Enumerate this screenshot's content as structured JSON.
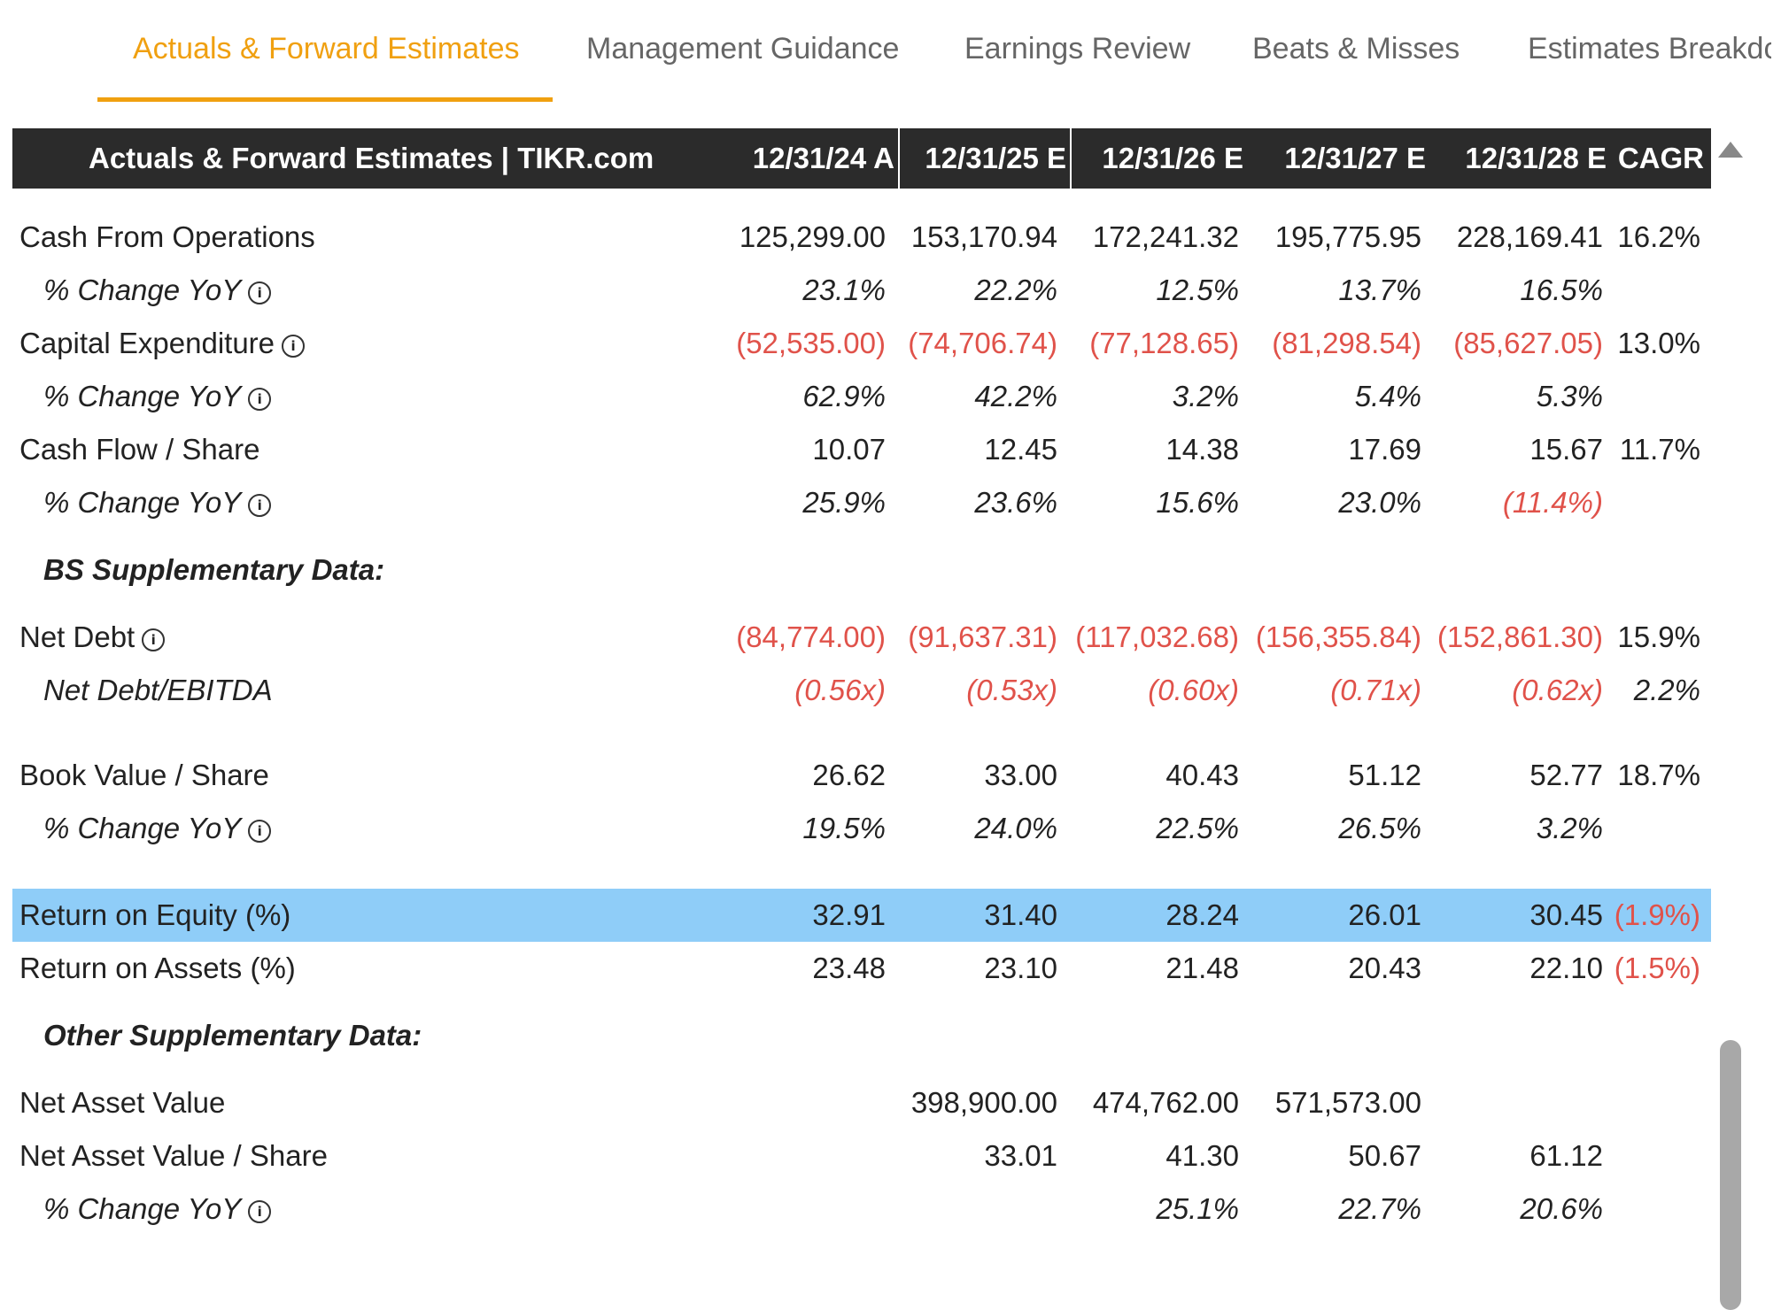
{
  "tabs": [
    {
      "label": "Actuals & Forward Estimates",
      "active": true
    },
    {
      "label": "Management Guidance",
      "active": false
    },
    {
      "label": "Earnings Review",
      "active": false
    },
    {
      "label": "Beats & Misses",
      "active": false
    },
    {
      "label": "Estimates Breakdc",
      "active": false
    }
  ],
  "table": {
    "title": "Actuals & Forward Estimates | TIKR.com",
    "columns": [
      "12/31/24 A",
      "12/31/25 E",
      "12/31/26 E",
      "12/31/27 E",
      "12/31/28 E",
      "CAGR"
    ],
    "rows": [
      {
        "label": "Cash From Operations",
        "values": [
          "125,299.00",
          "153,170.94",
          "172,241.32",
          "195,775.95",
          "228,169.41",
          "16.2%"
        ]
      },
      {
        "label": "% Change YoY",
        "values": [
          "23.1%",
          "22.2%",
          "12.5%",
          "13.7%",
          "16.5%",
          ""
        ]
      },
      {
        "label": "Capital Expenditure",
        "values": [
          "(52,535.00)",
          "(74,706.74)",
          "(77,128.65)",
          "(81,298.54)",
          "(85,627.05)",
          "13.0%"
        ]
      },
      {
        "label": "% Change YoY",
        "values": [
          "62.9%",
          "42.2%",
          "3.2%",
          "5.4%",
          "5.3%",
          ""
        ]
      },
      {
        "label": "Cash Flow / Share",
        "values": [
          "10.07",
          "12.45",
          "14.38",
          "17.69",
          "15.67",
          "11.7%"
        ]
      },
      {
        "label": "% Change YoY",
        "values": [
          "25.9%",
          "23.6%",
          "15.6%",
          "23.0%",
          "(11.4%)",
          ""
        ]
      },
      {
        "section": "BS Supplementary Data:"
      },
      {
        "label": "Net Debt",
        "values": [
          "(84,774.00)",
          "(91,637.31)",
          "(117,032.68)",
          "(156,355.84)",
          "(152,861.30)",
          "15.9%"
        ]
      },
      {
        "label": "Net Debt/EBITDA",
        "values": [
          "(0.56x)",
          "(0.53x)",
          "(0.60x)",
          "(0.71x)",
          "(0.62x)",
          "2.2%"
        ]
      },
      {
        "label": "Book Value / Share",
        "values": [
          "26.62",
          "33.00",
          "40.43",
          "51.12",
          "52.77",
          "18.7%"
        ]
      },
      {
        "label": "% Change YoY",
        "values": [
          "19.5%",
          "24.0%",
          "22.5%",
          "26.5%",
          "3.2%",
          ""
        ]
      },
      {
        "label": "Return on Equity (%)",
        "values": [
          "32.91",
          "31.40",
          "28.24",
          "26.01",
          "30.45",
          "(1.9%)"
        ],
        "highlighted": true
      },
      {
        "label": "Return on Assets (%)",
        "values": [
          "23.48",
          "23.10",
          "21.48",
          "20.43",
          "22.10",
          "(1.5%)"
        ]
      },
      {
        "section": "Other Supplementary Data:"
      },
      {
        "label": "Net Asset Value",
        "values": [
          "",
          "398,900.00",
          "474,762.00",
          "571,573.00",
          "",
          ""
        ]
      },
      {
        "label": "Net Asset Value / Share",
        "values": [
          "",
          "33.01",
          "41.30",
          "50.67",
          "61.12",
          ""
        ]
      },
      {
        "label": "% Change YoY",
        "values": [
          "",
          "",
          "25.1%",
          "22.7%",
          "20.6%",
          ""
        ]
      }
    ]
  },
  "colors": {
    "accent": "#f0a010",
    "negative": "#e0524a",
    "header_bg": "#2b2b2b",
    "highlight_bg": "#8fcdf8"
  },
  "icons": {
    "info": "info-icon",
    "scroll_up": "triangle-up-icon"
  }
}
